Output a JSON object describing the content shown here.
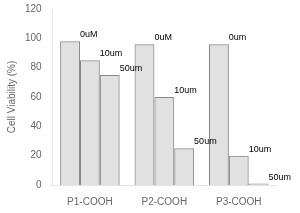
{
  "chart_data": {
    "type": "bar",
    "categories": [
      "P1-COOH",
      "P2-COOH",
      "P3-COOH"
    ],
    "series": [
      {
        "values": [
          98,
          96,
          96
        ]
      },
      {
        "values": [
          85,
          60,
          20
        ]
      },
      {
        "values": [
          75,
          25,
          1
        ]
      }
    ],
    "annotations": [
      [
        "0uM",
        "10um",
        "50um"
      ],
      [
        "0uM",
        "10um",
        "50um"
      ],
      [
        "0um",
        "10um",
        "50um"
      ]
    ],
    "ylabel": "Cell Viability (%)",
    "ylim": [
      0,
      120
    ],
    "yticks": [
      0,
      20,
      40,
      60,
      80,
      100,
      120
    ],
    "color": "#888888",
    "grid": false
  }
}
